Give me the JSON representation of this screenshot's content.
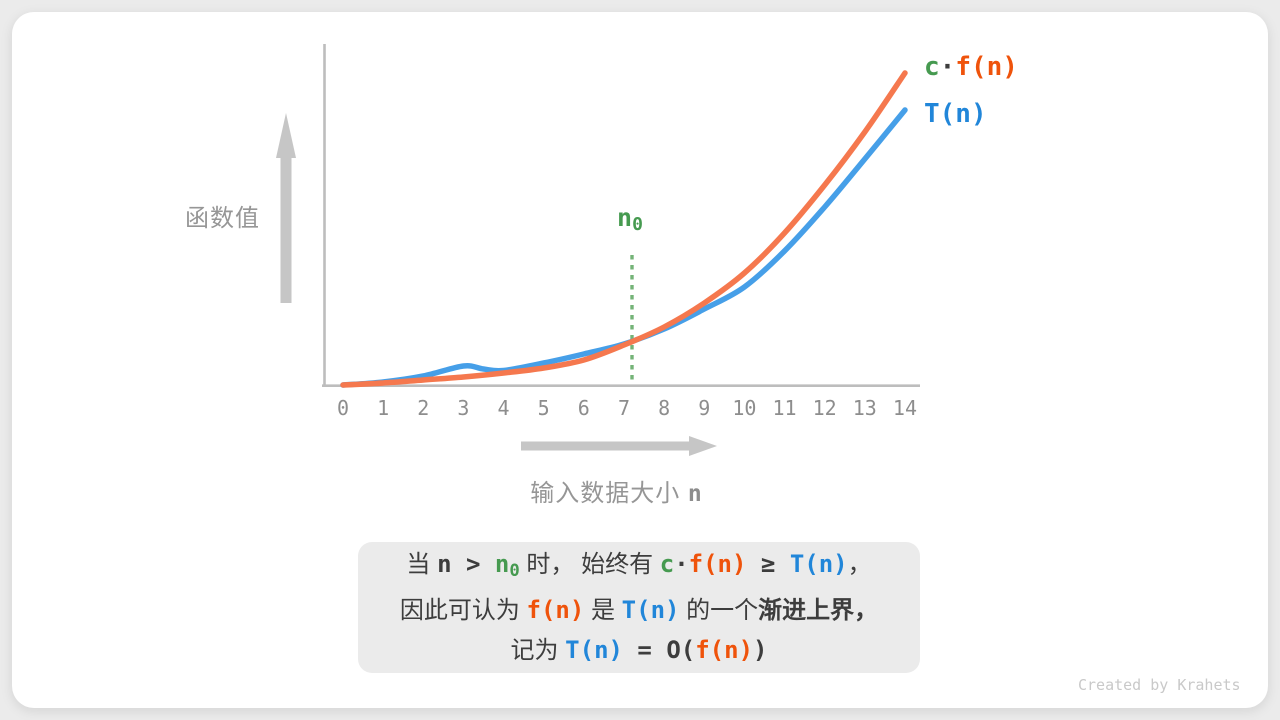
{
  "theme": {
    "outer_background": "#ebebeb",
    "card_background": "#ffffff",
    "caption_background": "#ebebeb",
    "axis_line_color": "#bdbdbd",
    "arrow_color": "#c6c6c6",
    "tick_label_color": "#8d8d8d",
    "axis_title_color": "#969696",
    "dark_text_color": "#3d3d3d",
    "green_text_color": "#469a50",
    "orange_text_color": "#ef530b",
    "blue_text_color": "#2186d9",
    "dotted_line_color": "#74b377",
    "watermark_color": "#c9c9c9"
  },
  "y_axis_label": "函数值",
  "x_axis_label_segments": [
    {
      "t": "输入数据大小 ",
      "s": "gray"
    },
    {
      "t": "n",
      "s": "graym"
    }
  ],
  "n0_label_segments": [
    {
      "t": "n",
      "s": "g"
    },
    {
      "t": "0",
      "s": "gsub"
    }
  ],
  "legend": {
    "cfn_segments": [
      {
        "t": "c",
        "s": "g"
      },
      {
        "t": "·",
        "s": "dm"
      },
      {
        "t": "f(n)",
        "s": "o"
      }
    ],
    "tn_segments": [
      {
        "t": "T(n)",
        "s": "b"
      }
    ]
  },
  "caption": {
    "line1": [
      {
        "t": "当 ",
        "s": "d"
      },
      {
        "t": "n",
        "s": "dm"
      },
      {
        "t": " > ",
        "s": "dm"
      },
      {
        "t": "n",
        "s": "g"
      },
      {
        "t": "0",
        "s": "gsub"
      },
      {
        "t": " 时，",
        "s": "d"
      },
      {
        "t": " 始终有 ",
        "s": "d"
      },
      {
        "t": "c",
        "s": "g"
      },
      {
        "t": "·",
        "s": "dm"
      },
      {
        "t": "f(n)",
        "s": "o"
      },
      {
        "t": " ≥ ",
        "s": "dm"
      },
      {
        "t": "T(n)",
        "s": "b"
      },
      {
        "t": "，",
        "s": "d"
      }
    ],
    "line2": [
      {
        "t": "因此可认为 ",
        "s": "d"
      },
      {
        "t": "f(n)",
        "s": "o"
      },
      {
        "t": " 是 ",
        "s": "d"
      },
      {
        "t": "T(n)",
        "s": "b"
      },
      {
        "t": " 的一个",
        "s": "d"
      },
      {
        "t": "渐进上界，",
        "s": "db"
      }
    ],
    "line3": [
      {
        "t": "记为 ",
        "s": "d"
      },
      {
        "t": "T(n)",
        "s": "b"
      },
      {
        "t": " = ",
        "s": "dm"
      },
      {
        "t": "O(",
        "s": "dmb"
      },
      {
        "t": "f(n)",
        "s": "o"
      },
      {
        "t": ")",
        "s": "dmb"
      }
    ]
  },
  "watermark": "Created by Krahets",
  "chart_data": {
    "type": "line",
    "title": "",
    "xlabel": "输入数据大小 n",
    "ylabel": "函数值",
    "x_ticks": [
      0,
      1,
      2,
      3,
      4,
      5,
      6,
      7,
      8,
      9,
      10,
      11,
      12,
      13,
      14
    ],
    "x_range": [
      0,
      14
    ],
    "grid": false,
    "legend_position": "top-right",
    "n0": 7.2,
    "n0_label": "n0",
    "annotation": "green dotted vertical line at n0 ≈ 7.2 where the curves cross; c·f(n) ≥ T(n) for n > n0",
    "series": [
      {
        "name": "c·f(n)",
        "color": "#f5784e",
        "x": [
          0,
          1,
          2,
          3,
          4,
          5,
          6,
          7,
          8,
          9,
          10,
          11,
          12,
          13,
          14
        ],
        "values": [
          2,
          4,
          7,
          10,
          14,
          19,
          27,
          42,
          60,
          84,
          114,
          154,
          202,
          255,
          314
        ]
      },
      {
        "name": "T(n)",
        "color": "#469fe8",
        "x": [
          0,
          1,
          2,
          3,
          3.5,
          4,
          5,
          6,
          7,
          8,
          9,
          10,
          11,
          12,
          13,
          14
        ],
        "values": [
          2,
          5,
          11,
          21,
          18,
          16.5,
          24,
          33,
          43,
          58,
          78,
          100,
          136,
          180,
          228,
          277
        ]
      }
    ]
  }
}
